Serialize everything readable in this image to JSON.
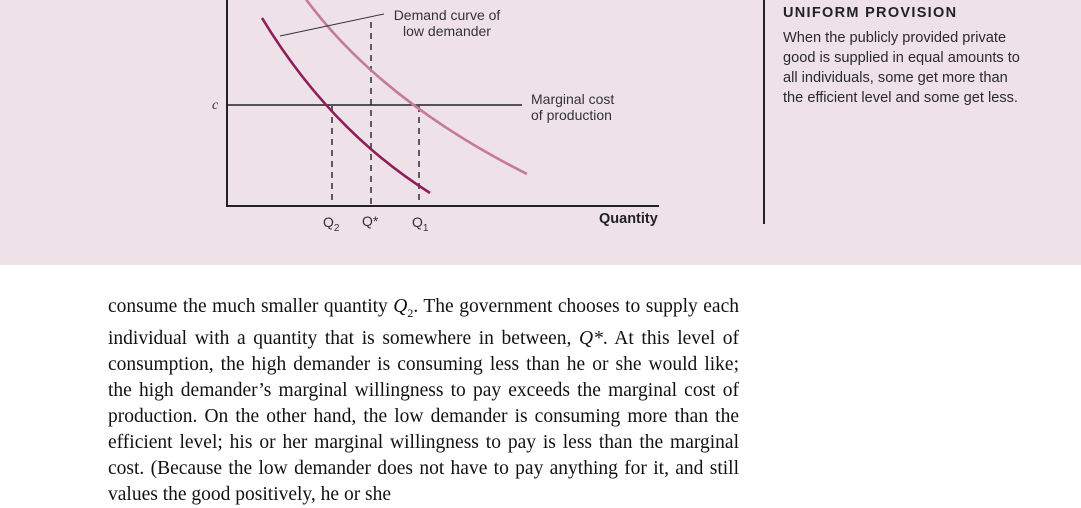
{
  "figure": {
    "price_label": "c",
    "demand_low_label_line1": "Demand curve of",
    "demand_low_label_line2": "low demander",
    "mc_label_line1": "Marginal cost",
    "mc_label_line2": "of production",
    "x_axis_label": "Quantity",
    "q2_letter": "Q",
    "q2_sub": "2",
    "qstar_label": "Q*",
    "q1_letter": "Q",
    "q1_sub": "1",
    "high_demand_color": "#c47a9a",
    "low_demand_color": "#8f1d58",
    "background_color": "#efe1e8"
  },
  "caption": {
    "title": "UNIFORM PROVISION",
    "text": "When the publicly provided private good is supplied in equal amounts to all individuals, some get more than the efficient level and some get less."
  },
  "body": {
    "lead": "consume the much smaller quantity ",
    "q_letter": "Q",
    "q_sub": "2",
    "mid1": ". The government chooses to supply each individual with a quantity that is somewhere in between, ",
    "qstar": "Q*",
    "rest": ". At this level of consumption, the high demander is consuming less than he or she would like; the high demander’s marginal willingness to pay exceeds the marginal cost of production. On the other hand, the low demander is consuming more than the efficient level; his or her marginal willingness to pay is less than the marginal cost. (Because the low demander does not have to pay anything for it, and still values the good positively, he or she"
  }
}
